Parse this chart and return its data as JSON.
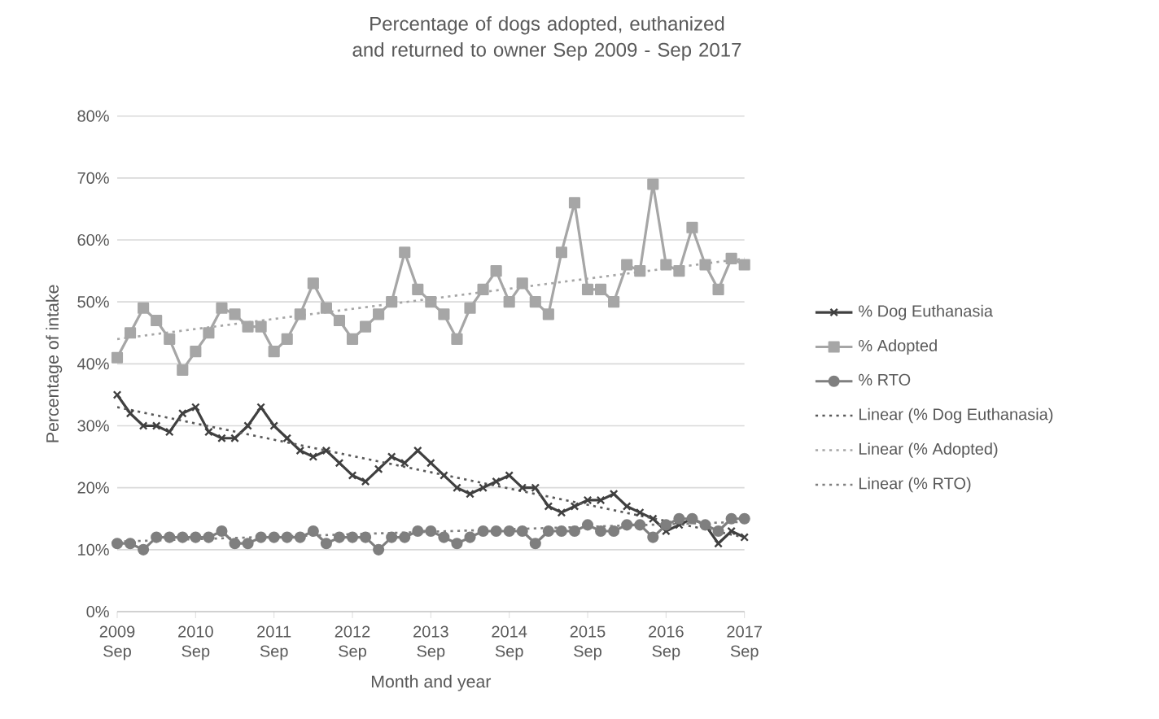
{
  "chart_data": {
    "type": "line",
    "title": "Percentage of dogs adopted, euthanized and returned to owner Sep 2009 - Sep 2017",
    "xlabel": "Month and year",
    "ylabel": "Percentage of intake",
    "x": [
      "2009-09",
      "2009-11",
      "2010-01",
      "2010-03",
      "2010-05",
      "2010-07",
      "2010-09",
      "2010-11",
      "2011-01",
      "2011-03",
      "2011-05",
      "2011-07",
      "2011-09",
      "2011-11",
      "2012-01",
      "2012-03",
      "2012-05",
      "2012-07",
      "2012-09",
      "2012-11",
      "2013-01",
      "2013-03",
      "2013-05",
      "2013-07",
      "2013-09",
      "2013-11",
      "2014-01",
      "2014-03",
      "2014-05",
      "2014-07",
      "2014-09",
      "2014-11",
      "2015-01",
      "2015-03",
      "2015-05",
      "2015-07",
      "2015-09",
      "2015-11",
      "2016-01",
      "2016-03",
      "2016-05",
      "2016-07",
      "2016-09",
      "2016-11",
      "2017-01",
      "2017-03",
      "2017-05",
      "2017-07",
      "2017-09"
    ],
    "series": [
      {
        "name": "% Dog Euthanasia",
        "color": "#404040",
        "marker": "cross",
        "values": [
          35,
          32,
          30,
          30,
          29,
          32,
          33,
          29,
          28,
          28,
          30,
          33,
          30,
          28,
          26,
          25,
          26,
          24,
          22,
          21,
          23,
          25,
          24,
          26,
          24,
          22,
          20,
          19,
          20,
          21,
          22,
          20,
          20,
          17,
          16,
          17,
          18,
          18,
          19,
          17,
          16,
          15,
          13,
          14,
          15,
          14,
          11,
          13,
          12
        ]
      },
      {
        "name": "% Adopted",
        "color": "#a6a6a6",
        "marker": "square",
        "values": [
          41,
          45,
          49,
          47,
          44,
          39,
          42,
          45,
          49,
          48,
          46,
          46,
          42,
          44,
          48,
          53,
          49,
          47,
          44,
          46,
          48,
          50,
          58,
          52,
          50,
          48,
          44,
          49,
          52,
          55,
          50,
          53,
          50,
          48,
          58,
          66,
          52,
          52,
          50,
          56,
          55,
          69,
          56,
          55,
          62,
          56,
          52,
          57,
          56
        ]
      },
      {
        "name": "% RTO",
        "color": "#7f7f7f",
        "marker": "circle",
        "values": [
          11,
          11,
          10,
          12,
          12,
          12,
          12,
          12,
          13,
          11,
          11,
          12,
          12,
          12,
          12,
          13,
          11,
          12,
          12,
          12,
          10,
          12,
          12,
          13,
          13,
          12,
          11,
          12,
          13,
          13,
          13,
          13,
          11,
          13,
          13,
          13,
          14,
          13,
          13,
          14,
          14,
          12,
          14,
          15,
          15,
          14,
          13,
          15,
          15
        ]
      },
      {
        "name": "Linear (% Dog Euthanasia)",
        "color": "#595959",
        "line_style": "dotted",
        "marker": "none",
        "x": [
          "2009-09",
          "2017-09"
        ],
        "values": [
          33,
          12
        ]
      },
      {
        "name": "Linear (% Adopted)",
        "color": "#a6a6a6",
        "line_style": "dotted",
        "marker": "none",
        "x": [
          "2009-09",
          "2017-09"
        ],
        "values": [
          44,
          57
        ]
      },
      {
        "name": "Linear (% RTO)",
        "color": "#7f7f7f",
        "line_style": "dotted",
        "marker": "none",
        "x": [
          "2009-09",
          "2017-09"
        ],
        "values": [
          11.3,
          14.5
        ]
      }
    ],
    "xlim": [
      "2009-09",
      "2017-09"
    ],
    "xticks": [
      {
        "value": "2009-09",
        "label": "2009 Sep"
      },
      {
        "value": "2010-09",
        "label": "2010 Sep"
      },
      {
        "value": "2011-09",
        "label": "2011 Sep"
      },
      {
        "value": "2012-09",
        "label": "2012 Sep"
      },
      {
        "value": "2013-09",
        "label": "2013 Sep"
      },
      {
        "value": "2014-09",
        "label": "2014 Sep"
      },
      {
        "value": "2015-09",
        "label": "2015 Sep"
      },
      {
        "value": "2016-09",
        "label": "2016 Sep"
      },
      {
        "value": "2017-09",
        "label": "2017 Sep"
      }
    ],
    "ylim": [
      0,
      80
    ],
    "yticks": [
      {
        "value": 0,
        "label": "0%"
      },
      {
        "value": 10,
        "label": "10%"
      },
      {
        "value": 20,
        "label": "20%"
      },
      {
        "value": 30,
        "label": "30%"
      },
      {
        "value": 40,
        "label": "40%"
      },
      {
        "value": 50,
        "label": "50%"
      },
      {
        "value": 60,
        "label": "60%"
      },
      {
        "value": 70,
        "label": "70%"
      },
      {
        "value": 80,
        "label": "80%"
      }
    ],
    "grid": "y",
    "legend": "right"
  }
}
